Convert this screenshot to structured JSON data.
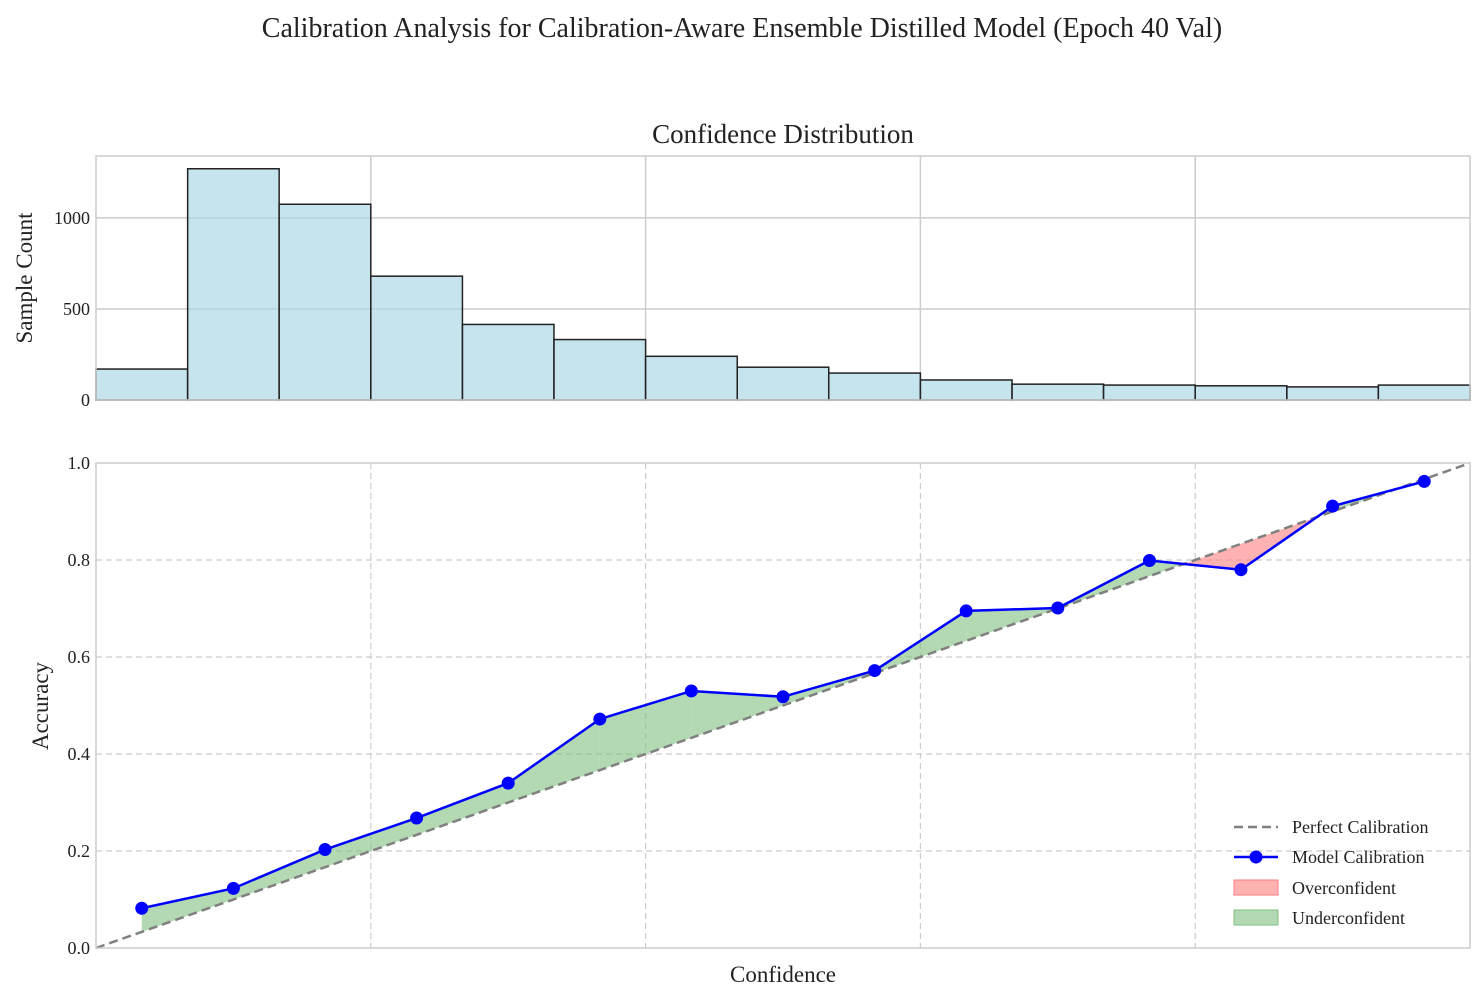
{
  "figure": {
    "title": "Calibration Analysis for Calibration-Aware Ensemble Distilled Model (Epoch 40 Val)"
  },
  "colors": {
    "hist_fill": "#add8e6",
    "hist_edge": "#222222",
    "model_line": "#0000ff",
    "perfect_line": "#808080",
    "overconfident": "#ff7f7f",
    "underconfident": "#7fbf7f",
    "grid": "#cccccc"
  },
  "chart_data": [
    {
      "type": "bar",
      "title": "Confidence Distribution",
      "xlabel": "",
      "ylabel": "Sample Count",
      "xlim": [
        0,
        1
      ],
      "ylim": [
        0,
        1340
      ],
      "yticks": [
        0,
        500,
        1000
      ],
      "bin_edges": [
        0.0,
        0.0667,
        0.1333,
        0.2,
        0.2667,
        0.3333,
        0.4,
        0.4667,
        0.5333,
        0.6,
        0.6667,
        0.7333,
        0.8,
        0.8667,
        0.9333,
        1.0
      ],
      "values": [
        170,
        1270,
        1075,
        680,
        415,
        332,
        240,
        180,
        148,
        110,
        87,
        82,
        78,
        72,
        82
      ],
      "grid": true
    },
    {
      "type": "line",
      "title": "",
      "xlabel": "Confidence",
      "ylabel": "Accuracy",
      "xlim": [
        0,
        1
      ],
      "ylim": [
        0,
        1
      ],
      "yticks": [
        0.0,
        0.2,
        0.4,
        0.6,
        0.8,
        1.0
      ],
      "grid": true,
      "legend_position": "bottom-right",
      "series": [
        {
          "name": "Perfect Calibration",
          "x": [
            0,
            1
          ],
          "y": [
            0,
            1
          ]
        },
        {
          "name": "Model Calibration",
          "x": [
            0.0333,
            0.1,
            0.1667,
            0.2333,
            0.3,
            0.3667,
            0.4333,
            0.5,
            0.5667,
            0.6333,
            0.7,
            0.7667,
            0.8333,
            0.9,
            0.9667
          ],
          "y": [
            0.082,
            0.123,
            0.203,
            0.268,
            0.34,
            0.472,
            0.53,
            0.518,
            0.572,
            0.695,
            0.701,
            0.799,
            0.78,
            0.911,
            0.962
          ]
        }
      ],
      "legend": [
        "Perfect Calibration",
        "Model Calibration",
        "Overconfident",
        "Underconfident"
      ]
    }
  ]
}
